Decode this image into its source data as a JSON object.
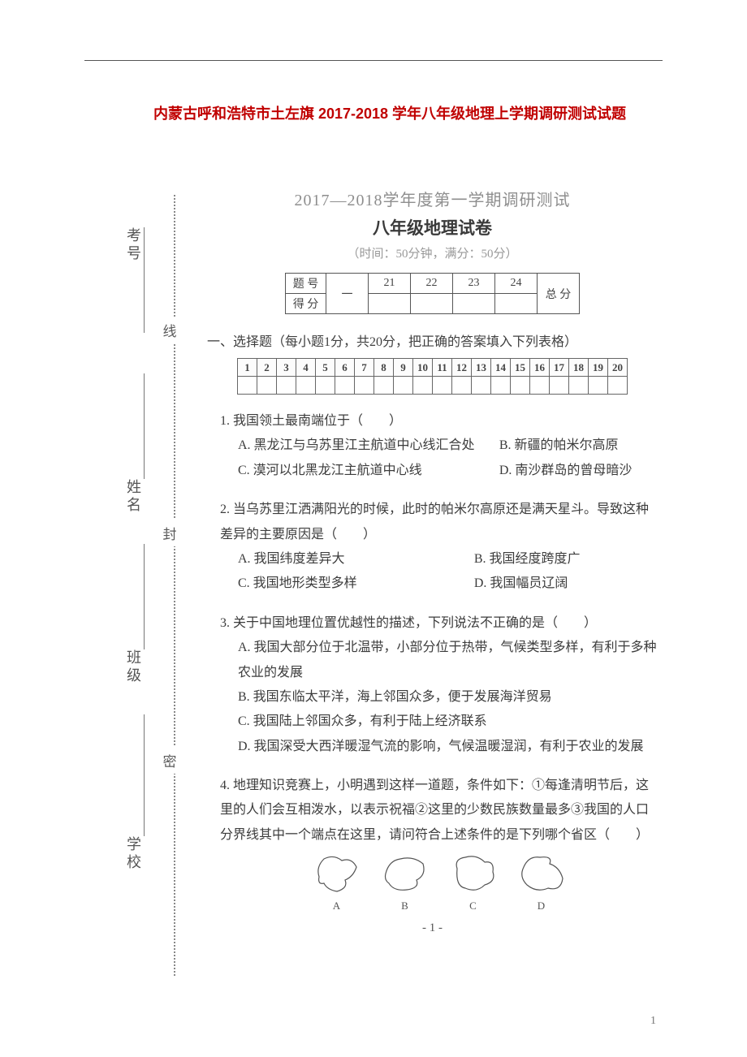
{
  "doc_title": "内蒙古呼和浩特市土左旗 2017-2018 学年八年级地理上学期调研测试试题",
  "title_color": "#c00000",
  "binding": {
    "labels_left": [
      "考号",
      "姓名",
      "班级",
      "学校"
    ],
    "labels_mid": [
      "线",
      "封",
      "密"
    ]
  },
  "header": {
    "line1": "2017—2018学年度第一学期调研测试",
    "line2": "八年级地理试卷",
    "time": "（时间：50分钟，满分：50分）"
  },
  "score_table": {
    "row1_label": "题  号",
    "row2_label": "得  分",
    "cols": [
      "一",
      "21",
      "22",
      "23",
      "24"
    ],
    "total_header": "总 分"
  },
  "section1": {
    "title": "一、选择题（每小题1分，共20分，把正确的答案填入下列表格）",
    "answer_headers": [
      "1",
      "2",
      "3",
      "4",
      "5",
      "6",
      "7",
      "8",
      "9",
      "10",
      "11",
      "12",
      "13",
      "14",
      "15",
      "16",
      "17",
      "18",
      "19",
      "20"
    ]
  },
  "questions": {
    "q1": {
      "stem": "1. 我国领土最南端位于（　　）",
      "A": "A. 黑龙江与乌苏里江主航道中心线汇合处",
      "B": "B. 新疆的帕米尔高原",
      "C": "C. 漠河以北黑龙江主航道中心线",
      "D": "D. 南沙群岛的曾母暗沙"
    },
    "q2": {
      "stem": "2. 当乌苏里江洒满阳光的时候，此时的帕米尔高原还是满天星斗。导致这种差异的主要原因是（　　）",
      "A": "A. 我国纬度差异大",
      "B": "B. 我国经度跨度广",
      "C": "C. 我国地形类型多样",
      "D": "D. 我国幅员辽阔"
    },
    "q3": {
      "stem": "3. 关于中国地理位置优越性的描述，下列说法不正确的是（　　）",
      "A": "A. 我国大部分位于北温带，小部分位于热带，气候类型多样，有利于多种农业的发展",
      "B": "B. 我国东临太平洋，海上邻国众多，便于发展海洋贸易",
      "C": "C. 我国陆上邻国众多，有利于陆上经济联系",
      "D": "D. 我国深受大西洋暖湿气流的影响，气候温暖湿润，有利于农业的发展"
    },
    "q4": {
      "stem": "4. 地理知识竞赛上，小明遇到这样一道题，条件如下：①每逢清明节后，这里的人们会互相泼水，以表示祝福②这里的少数民族数量最多③我国的人口分界线其中一个端点在这里，请问符合上述条件的是下列哪个省区（　　）",
      "caps": [
        "A",
        "B",
        "C",
        "D"
      ]
    }
  },
  "page_number": "- 1 -",
  "footer_num": "1",
  "colors": {
    "text": "#3c3c3c",
    "faint": "#565656",
    "border": "#555555",
    "dotted": "#888888"
  }
}
